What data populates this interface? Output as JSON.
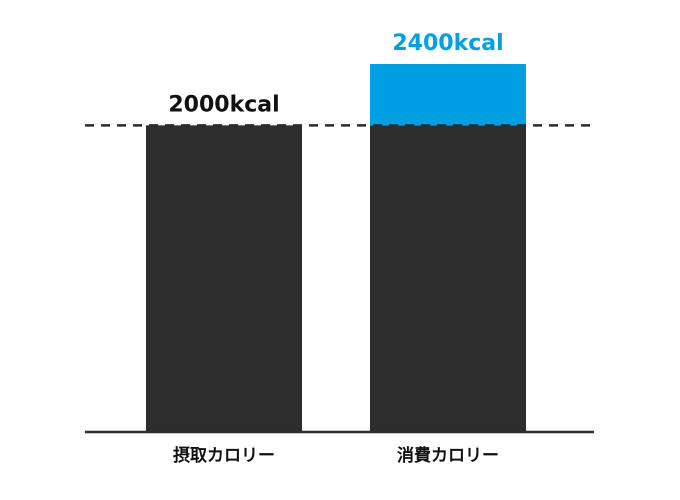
{
  "chart_data": {
    "type": "bar",
    "categories": [
      "摂取カロリー",
      "消費カロリー"
    ],
    "values": [
      2000,
      2400
    ],
    "value_labels": [
      "2000kcal",
      "2400kcal"
    ],
    "color": "#2d2d2d",
    "excess_color": "#009fe3",
    "reference_line": 2000,
    "ylim": [
      0,
      2400
    ]
  }
}
